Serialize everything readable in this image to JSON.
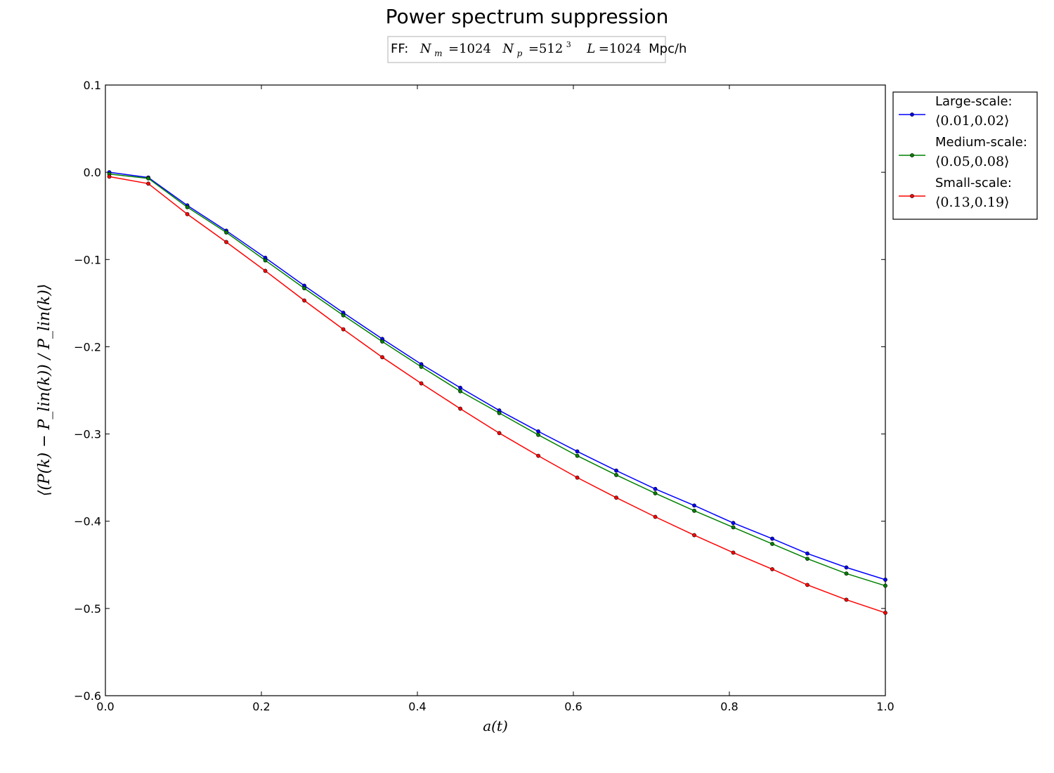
{
  "chart_data": {
    "type": "line",
    "title": "Power spectrum suppression",
    "subtitle": {
      "prefix": "FF:",
      "nm_label": "N",
      "nm_sub": "m",
      "nm_value": "=1024",
      "np_label": "N",
      "np_sub": "p",
      "np_value": "=512",
      "np_sup": "3",
      "l_label": "L",
      "l_value": "=1024",
      "units": "Mpc/h"
    },
    "xlabel": "a(t)",
    "ylabel": "⟨(P(k) − P_lin(k)) / P_lin(k)⟩",
    "xlim": [
      0.0,
      1.0
    ],
    "ylim": [
      -0.6,
      0.1
    ],
    "xticks": [
      "0.0",
      "0.2",
      "0.4",
      "0.6",
      "0.8",
      "1.0"
    ],
    "yticks": [
      "0.1",
      "0.0",
      "−0.1",
      "−0.2",
      "−0.3",
      "−0.4",
      "−0.5",
      "−0.6"
    ],
    "grid": false,
    "legend_position": "outside-right",
    "x": [
      0.005,
      0.055,
      0.105,
      0.155,
      0.205,
      0.255,
      0.305,
      0.355,
      0.405,
      0.455,
      0.505,
      0.555,
      0.605,
      0.655,
      0.705,
      0.755,
      0.805,
      0.855,
      0.9,
      0.95,
      1.0
    ],
    "series": [
      {
        "name": "Large-scale:",
        "range": "⟨0.01,0.02⟩",
        "color": "#0000ff",
        "values": [
          0.0,
          -0.006,
          -0.038,
          -0.067,
          -0.098,
          -0.13,
          -0.161,
          -0.191,
          -0.22,
          -0.247,
          -0.273,
          -0.297,
          -0.32,
          -0.342,
          -0.363,
          -0.382,
          -0.402,
          -0.42,
          -0.437,
          -0.453,
          -0.467
        ]
      },
      {
        "name": "Medium-scale:",
        "range": "⟨0.05,0.08⟩",
        "color": "#008000",
        "values": [
          -0.002,
          -0.007,
          -0.04,
          -0.069,
          -0.101,
          -0.133,
          -0.164,
          -0.194,
          -0.223,
          -0.251,
          -0.276,
          -0.301,
          -0.325,
          -0.347,
          -0.368,
          -0.388,
          -0.407,
          -0.426,
          -0.443,
          -0.46,
          -0.474
        ]
      },
      {
        "name": "Small-scale:",
        "range": "⟨0.13,0.19⟩",
        "color": "#ff0000",
        "values": [
          -0.005,
          -0.013,
          -0.048,
          -0.08,
          -0.113,
          -0.147,
          -0.18,
          -0.212,
          -0.242,
          -0.271,
          -0.299,
          -0.325,
          -0.35,
          -0.373,
          -0.395,
          -0.416,
          -0.436,
          -0.455,
          -0.473,
          -0.49,
          -0.505
        ]
      }
    ]
  }
}
